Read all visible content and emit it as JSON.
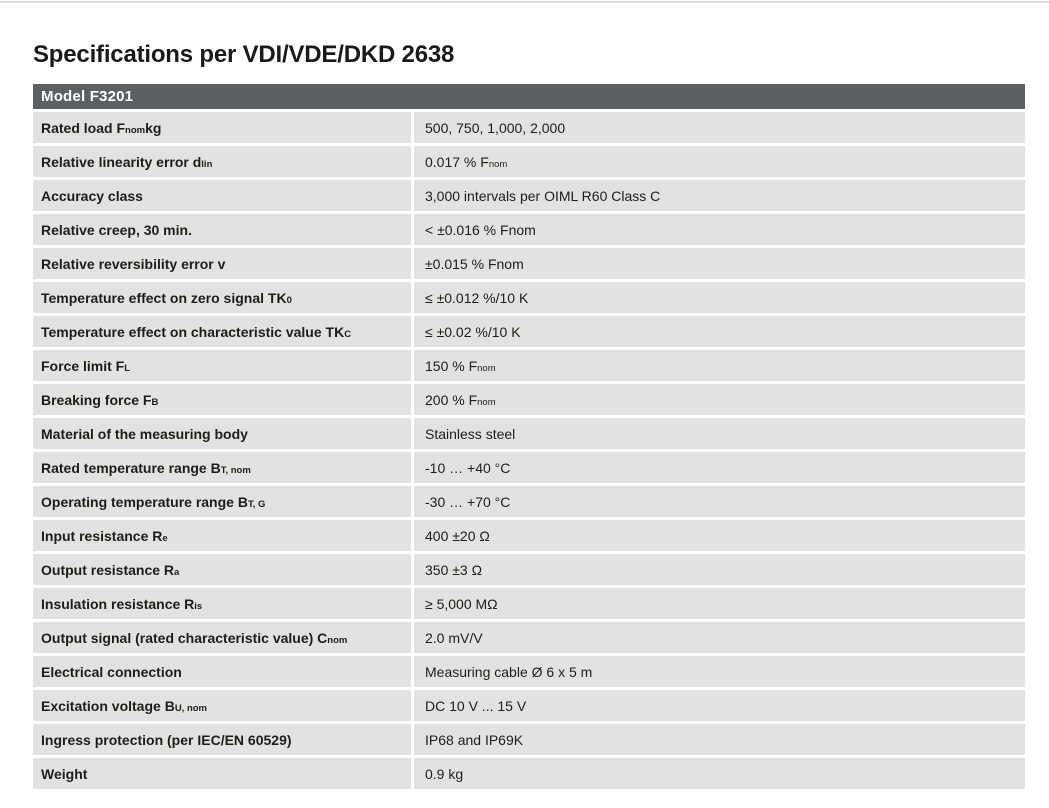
{
  "page": {
    "title": "Specifications per VDI/VDE/DKD 2638"
  },
  "table": {
    "header": "Model F3201",
    "colors": {
      "header_bg": "#5c6063",
      "header_text": "#ffffff",
      "row_bg": "#e2e2e0",
      "text": "#1d1d1b"
    },
    "rows": [
      {
        "label": "Rated load F~nom~ kg",
        "value": "500, 750, 1,000, 2,000"
      },
      {
        "label": "Relative linearity error d~lin~",
        "value": "0.017 % F~nom~"
      },
      {
        "label": "Accuracy class",
        "value": "3,000 intervals per OIML R60 Class C"
      },
      {
        "label": "Relative creep, 30 min.",
        "value": "< ±0.016 % Fnom"
      },
      {
        "label": "Relative reversibility error v",
        "value": "±0.015 % Fnom"
      },
      {
        "label": "Temperature effect on zero signal TK~0~",
        "value": "≤ ±0.012 %/10 K"
      },
      {
        "label": "Temperature effect on characteristic value TK~C~",
        "value": "≤ ±0.02 %/10 K"
      },
      {
        "label": "Force limit F~L~",
        "value": "150 % F~nom~"
      },
      {
        "label": "Breaking force F~B~",
        "value": "200 % F~nom~"
      },
      {
        "label": "Material of the measuring body",
        "value": "Stainless steel"
      },
      {
        "label": "Rated temperature range B~T, nom~",
        "value": "-10 … +40 °C"
      },
      {
        "label": "Operating temperature range B~T, G~",
        "value": "-30 … +70 °C"
      },
      {
        "label": "Input resistance R~e~",
        "value": "400 ±20 Ω"
      },
      {
        "label": "Output resistance R~a~",
        "value": "350 ±3 Ω"
      },
      {
        "label": "Insulation resistance R~is~",
        "value": "≥ 5,000 MΩ"
      },
      {
        "label": "Output signal (rated characteristic value) C~nom~",
        "value": "2.0 mV/V"
      },
      {
        "label": "Electrical connection",
        "value": "Measuring cable Ø 6 x 5 m"
      },
      {
        "label": "Excitation voltage B~U, nom~",
        "value": "DC 10 V ... 15 V"
      },
      {
        "label": "Ingress protection (per IEC/EN 60529)",
        "value": "IP68 and IP69K"
      },
      {
        "label": "Weight",
        "value": "0.9 kg"
      }
    ]
  }
}
